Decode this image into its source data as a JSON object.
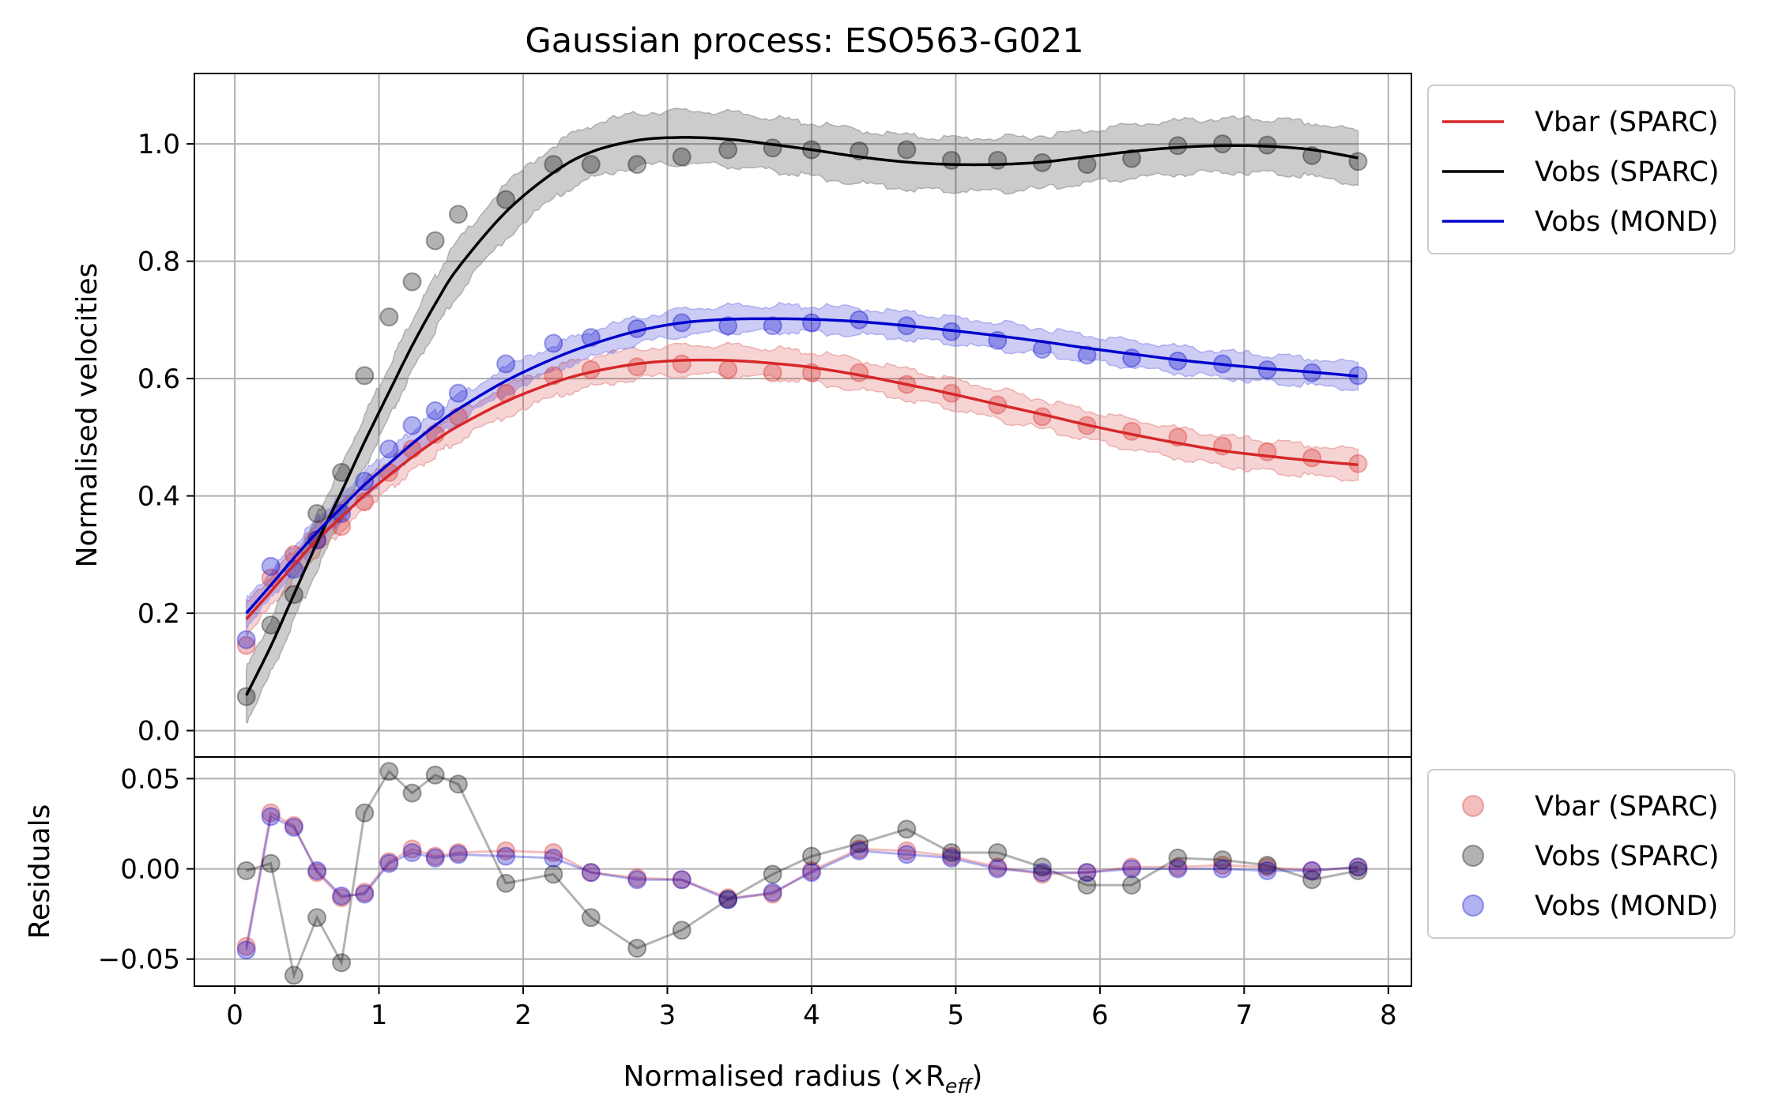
{
  "chart_data": [
    {
      "type": "line",
      "panel": "main",
      "title": "Gaussian process: ESO563-G021",
      "ylabel": "Normalised velocities",
      "xlim": [
        -0.28,
        8.16
      ],
      "ylim": [
        -0.045,
        1.12
      ],
      "xticks": [
        0,
        1,
        2,
        3,
        4,
        5,
        6,
        7,
        8
      ],
      "xtick_labels": [
        "0",
        "1",
        "2",
        "3",
        "4",
        "5",
        "6",
        "7",
        "8"
      ],
      "yticks": [
        0.0,
        0.2,
        0.4,
        0.6,
        0.8,
        1.0
      ],
      "ytick_labels": [
        "0.0",
        "0.2",
        "0.4",
        "0.6",
        "0.8",
        "1.0"
      ],
      "grid": true,
      "legend": {
        "placement": "outside-right-top",
        "entries": [
          "Vbar (SPARC)",
          "Vobs (SPARC)",
          "Vobs (MOND)"
        ]
      },
      "x": [
        0.08,
        0.25,
        0.41,
        0.57,
        0.74,
        0.9,
        1.07,
        1.23,
        1.39,
        1.55,
        1.88,
        2.21,
        2.47,
        2.79,
        3.1,
        3.42,
        3.73,
        4.0,
        4.33,
        4.66,
        4.97,
        5.29,
        5.6,
        5.91,
        6.22,
        6.54,
        6.85,
        7.16,
        7.47,
        7.79
      ],
      "series": [
        {
          "name": "Vbar (SPARC)",
          "color": "#d62728",
          "points": [
            0.145,
            0.26,
            0.3,
            0.325,
            0.348,
            0.39,
            0.44,
            0.48,
            0.505,
            0.535,
            0.575,
            0.605,
            0.615,
            0.62,
            0.625,
            0.615,
            0.61,
            0.61,
            0.61,
            0.59,
            0.575,
            0.555,
            0.535,
            0.52,
            0.51,
            0.5,
            0.485,
            0.475,
            0.465,
            0.455
          ],
          "fit": [
            0.19,
            0.237,
            0.282,
            0.325,
            0.364,
            0.401,
            0.435,
            0.466,
            0.494,
            0.519,
            0.561,
            0.593,
            0.611,
            0.625,
            0.631,
            0.631,
            0.626,
            0.619,
            0.606,
            0.59,
            0.574,
            0.556,
            0.539,
            0.521,
            0.505,
            0.49,
            0.477,
            0.468,
            0.46,
            0.453
          ],
          "band_halfwidth": 0.025
        },
        {
          "name": "Vobs (SPARC)",
          "color": "#000000",
          "points": [
            0.058,
            0.18,
            0.232,
            0.37,
            0.44,
            0.605,
            0.705,
            0.765,
            0.835,
            0.88,
            0.905,
            0.965,
            0.965,
            0.965,
            0.978,
            0.99,
            0.993,
            0.99,
            0.988,
            0.99,
            0.972,
            0.972,
            0.968,
            0.965,
            0.975,
            0.997,
            1.0,
            0.998,
            0.98,
            0.97
          ],
          "fit": [
            0.06,
            0.144,
            0.232,
            0.32,
            0.407,
            0.492,
            0.577,
            0.656,
            0.727,
            0.789,
            0.884,
            0.951,
            0.986,
            1.006,
            1.011,
            1.008,
            0.999,
            0.99,
            0.978,
            0.969,
            0.965,
            0.965,
            0.969,
            0.978,
            0.987,
            0.994,
            0.997,
            0.996,
            0.99,
            0.976
          ],
          "band_halfwidth": 0.045
        },
        {
          "name": "Vobs (MOND)",
          "color": "#0000cc",
          "points": [
            0.155,
            0.28,
            0.275,
            0.325,
            0.37,
            0.425,
            0.48,
            0.52,
            0.545,
            0.575,
            0.625,
            0.66,
            0.67,
            0.685,
            0.695,
            0.69,
            0.69,
            0.695,
            0.7,
            0.69,
            0.68,
            0.665,
            0.65,
            0.64,
            0.635,
            0.63,
            0.625,
            0.615,
            0.61,
            0.605
          ],
          "fit": [
            0.2,
            0.248,
            0.294,
            0.338,
            0.38,
            0.419,
            0.455,
            0.489,
            0.52,
            0.548,
            0.596,
            0.634,
            0.658,
            0.681,
            0.695,
            0.701,
            0.702,
            0.701,
            0.697,
            0.69,
            0.682,
            0.673,
            0.663,
            0.652,
            0.642,
            0.632,
            0.624,
            0.617,
            0.611,
            0.604
          ],
          "band_halfwidth": 0.022
        }
      ]
    },
    {
      "type": "scatter",
      "panel": "residuals",
      "xlabel": "Normalised radius (×R",
      "xlabel_subscript": "eff",
      "xlabel_suffix": ")",
      "ylabel": "Residuals",
      "xlim": [
        -0.28,
        8.16
      ],
      "ylim": [
        -0.065,
        0.062
      ],
      "yticks": [
        0.05,
        0.0,
        -0.05
      ],
      "ytick_labels": [
        "0.05",
        "0.00",
        "−0.05"
      ],
      "grid": true,
      "legend": {
        "placement": "outside-right-top",
        "entries": [
          "Vbar (SPARC)",
          "Vobs (SPARC)",
          "Vobs (MOND)"
        ]
      },
      "x": [
        0.08,
        0.25,
        0.41,
        0.57,
        0.74,
        0.9,
        1.07,
        1.23,
        1.39,
        1.55,
        1.88,
        2.21,
        2.47,
        2.79,
        3.1,
        3.42,
        3.73,
        4.0,
        4.33,
        4.66,
        4.97,
        5.29,
        5.6,
        5.91,
        6.22,
        6.54,
        6.85,
        7.16,
        7.47,
        7.79
      ],
      "series": [
        {
          "name": "Vbar (SPARC)",
          "color": "#d62728",
          "values": [
            -0.043,
            0.031,
            0.024,
            -0.002,
            -0.016,
            -0.013,
            0.004,
            0.011,
            0.007,
            0.009,
            0.01,
            0.009,
            -0.002,
            -0.005,
            -0.006,
            -0.016,
            -0.014,
            -0.001,
            0.011,
            0.01,
            0.007,
            0.001,
            -0.003,
            -0.002,
            0.001,
            0.001,
            0.002,
            0.001,
            -0.001,
            0.001
          ]
        },
        {
          "name": "Vobs (SPARC)",
          "color": "#000000",
          "values": [
            -0.001,
            0.003,
            -0.059,
            -0.027,
            -0.052,
            0.031,
            0.054,
            0.042,
            0.052,
            0.047,
            -0.008,
            -0.003,
            -0.027,
            -0.044,
            -0.034,
            -0.017,
            -0.003,
            0.007,
            0.014,
            0.022,
            0.009,
            0.009,
            0.001,
            -0.009,
            -0.009,
            0.006,
            0.005,
            0.002,
            -0.006,
            -0.001
          ]
        },
        {
          "name": "Vobs (MOND)",
          "color": "#0000cc",
          "values": [
            -0.045,
            0.029,
            0.023,
            -0.001,
            -0.015,
            -0.014,
            0.003,
            0.009,
            0.006,
            0.008,
            0.007,
            0.006,
            -0.002,
            -0.006,
            -0.006,
            -0.017,
            -0.013,
            -0.002,
            0.01,
            0.008,
            0.006,
            0.0,
            -0.002,
            -0.002,
            0.0,
            0.0,
            0.0,
            -0.001,
            -0.001,
            0.001
          ]
        }
      ]
    }
  ]
}
